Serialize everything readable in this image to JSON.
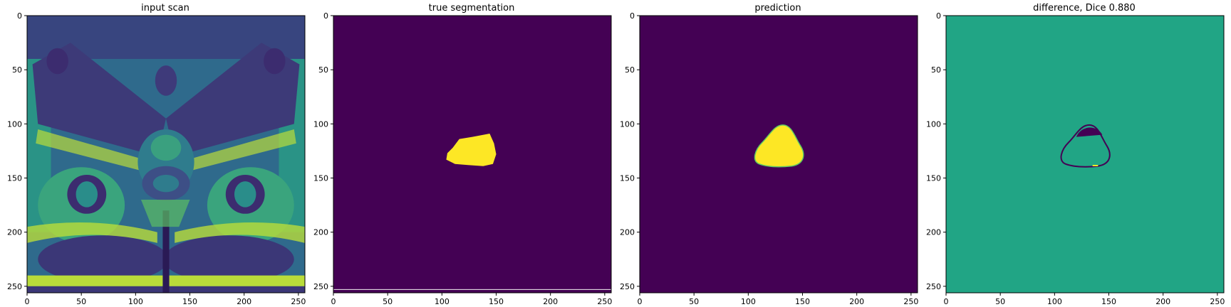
{
  "panels": [
    {
      "id": "input-scan",
      "title": "input scan",
      "kind": "scan"
    },
    {
      "id": "true-segmentation",
      "title": "true segmentation",
      "kind": "mask",
      "colors": {
        "background": "#440154",
        "foreground": "#fde725"
      }
    },
    {
      "id": "prediction",
      "title": "prediction",
      "kind": "mask",
      "colors": {
        "background": "#440154",
        "foreground": "#fde725"
      }
    },
    {
      "id": "difference",
      "title": "difference, Dice 0.880",
      "kind": "difference",
      "colors": {
        "background": "#21a585",
        "under": "#440154",
        "over": "#fde725"
      }
    }
  ],
  "axes": {
    "x_ticks": [
      "0",
      "50",
      "100",
      "150",
      "200",
      "250"
    ],
    "y_ticks": [
      "0",
      "50",
      "100",
      "150",
      "200",
      "250"
    ],
    "range": [
      0,
      256
    ]
  },
  "colormap": "viridis"
}
